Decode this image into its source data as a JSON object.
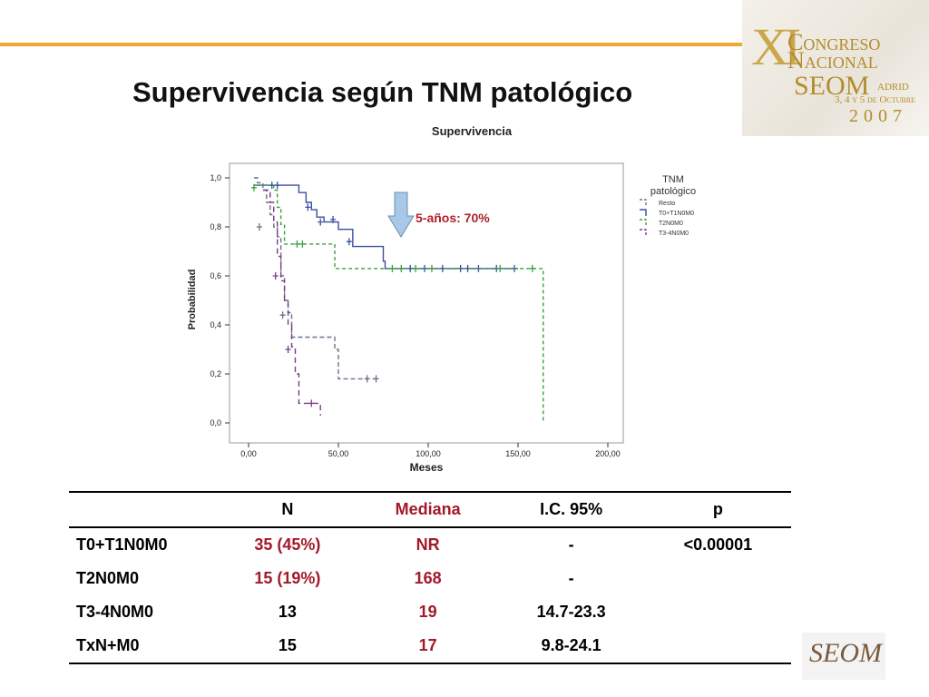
{
  "slide": {
    "title": "Supervivencia según TNM patológico"
  },
  "logo": {
    "roman": "XI",
    "line1": "Congreso",
    "line2": "Nacional",
    "line3": "SEOM",
    "line3b": "adrid",
    "line4": "3, 4 y 5 de Octubre",
    "line5": "2007",
    "bottom": "SEOM"
  },
  "chart_data": {
    "type": "line",
    "title": "Supervivencia",
    "xlabel": "Meses",
    "ylabel": "Probabilidad",
    "xlim": [
      0,
      200
    ],
    "ylim": [
      0,
      1
    ],
    "xticks": [
      "0,00",
      "50,00",
      "100,00",
      "150,00",
      "200,00"
    ],
    "yticks": [
      "0,0",
      "0,2",
      "0,4",
      "0,6",
      "0,8",
      "1,0"
    ],
    "legend": {
      "title": "TNM patológico",
      "placement": "top-right",
      "entries": [
        "Resto",
        "T0+T1N0M0",
        "T2N0M0",
        "T3-4N0M0"
      ]
    },
    "annotation": "5-años: 70%",
    "series": [
      {
        "name": "Resto",
        "color": "#6e6e8a",
        "dash": "5,3",
        "points": [
          [
            3,
            1.0
          ],
          [
            5,
            0.98
          ],
          [
            8,
            0.95
          ],
          [
            10,
            0.9
          ],
          [
            12,
            0.85
          ],
          [
            14,
            0.8
          ],
          [
            16,
            0.76
          ],
          [
            18,
            0.6
          ],
          [
            20,
            0.5
          ],
          [
            22,
            0.45
          ],
          [
            24,
            0.35
          ],
          [
            32,
            0.35
          ],
          [
            46,
            0.35
          ],
          [
            48,
            0.3
          ],
          [
            50,
            0.18
          ],
          [
            68,
            0.18
          ],
          [
            73,
            0.18
          ]
        ],
        "censored": [
          [
            6,
            0.8
          ],
          [
            19,
            0.44
          ],
          [
            66,
            0.18
          ],
          [
            71,
            0.18
          ]
        ]
      },
      {
        "name": "T0+T1N0M0",
        "color": "#3a4fa0",
        "dash": "",
        "points": [
          [
            3,
            0.97
          ],
          [
            25,
            0.97
          ],
          [
            28,
            0.94
          ],
          [
            32,
            0.9
          ],
          [
            35,
            0.87
          ],
          [
            38,
            0.84
          ],
          [
            42,
            0.82
          ],
          [
            50,
            0.79
          ],
          [
            58,
            0.72
          ],
          [
            70,
            0.72
          ],
          [
            75,
            0.66
          ],
          [
            76,
            0.63
          ],
          [
            92,
            0.63
          ],
          [
            110,
            0.63
          ],
          [
            150,
            0.63
          ]
        ],
        "censored": [
          [
            13,
            0.97
          ],
          [
            16,
            0.97
          ],
          [
            33,
            0.88
          ],
          [
            40,
            0.82
          ],
          [
            47,
            0.83
          ],
          [
            56,
            0.74
          ],
          [
            90,
            0.63
          ],
          [
            98,
            0.63
          ],
          [
            108,
            0.63
          ],
          [
            118,
            0.63
          ],
          [
            122,
            0.63
          ],
          [
            128,
            0.63
          ],
          [
            138,
            0.63
          ],
          [
            148,
            0.63
          ]
        ]
      },
      {
        "name": "T2N0M0",
        "color": "#3aa040",
        "dash": "4,3",
        "points": [
          [
            3,
            0.97
          ],
          [
            14,
            0.95
          ],
          [
            16,
            0.88
          ],
          [
            18,
            0.81
          ],
          [
            20,
            0.73
          ],
          [
            45,
            0.73
          ],
          [
            48,
            0.63
          ],
          [
            100,
            0.63
          ],
          [
            160,
            0.63
          ],
          [
            164,
            0.63
          ],
          [
            164,
            0.0
          ]
        ],
        "censored": [
          [
            3,
            0.96
          ],
          [
            27,
            0.73
          ],
          [
            30,
            0.73
          ],
          [
            80,
            0.63
          ],
          [
            85,
            0.63
          ],
          [
            93,
            0.63
          ],
          [
            102,
            0.63
          ],
          [
            140,
            0.63
          ],
          [
            158,
            0.63
          ]
        ]
      },
      {
        "name": "T3-4N0M0",
        "color": "#7a3a8a",
        "dash": "6,4",
        "points": [
          [
            8,
            0.95
          ],
          [
            12,
            0.9
          ],
          [
            14,
            0.82
          ],
          [
            16,
            0.68
          ],
          [
            18,
            0.58
          ],
          [
            20,
            0.5
          ],
          [
            22,
            0.4
          ],
          [
            24,
            0.31
          ],
          [
            26,
            0.2
          ],
          [
            28,
            0.08
          ],
          [
            34,
            0.08
          ],
          [
            40,
            0.08
          ],
          [
            40,
            0.03
          ]
        ],
        "censored": [
          [
            15,
            0.6
          ],
          [
            22,
            0.3
          ],
          [
            35,
            0.08
          ]
        ]
      }
    ]
  },
  "table": {
    "headers": [
      "",
      "N",
      "Mediana",
      "I.C. 95%",
      "p"
    ],
    "rows": [
      {
        "label": "T0+T1N0M0",
        "n": "35 (45%)",
        "mediana": "NR",
        "ic": "-",
        "p": "<0.00001"
      },
      {
        "label": "T2N0M0",
        "n": "15 (19%)",
        "mediana": "168",
        "ic": "-",
        "p": ""
      },
      {
        "label": "T3-4N0M0",
        "n": "13",
        "mediana": "19",
        "ic": "14.7-23.3",
        "p": ""
      },
      {
        "label": "TxN+M0",
        "n": "15",
        "mediana": "17",
        "ic": "9.8-24.1",
        "p": ""
      }
    ]
  }
}
